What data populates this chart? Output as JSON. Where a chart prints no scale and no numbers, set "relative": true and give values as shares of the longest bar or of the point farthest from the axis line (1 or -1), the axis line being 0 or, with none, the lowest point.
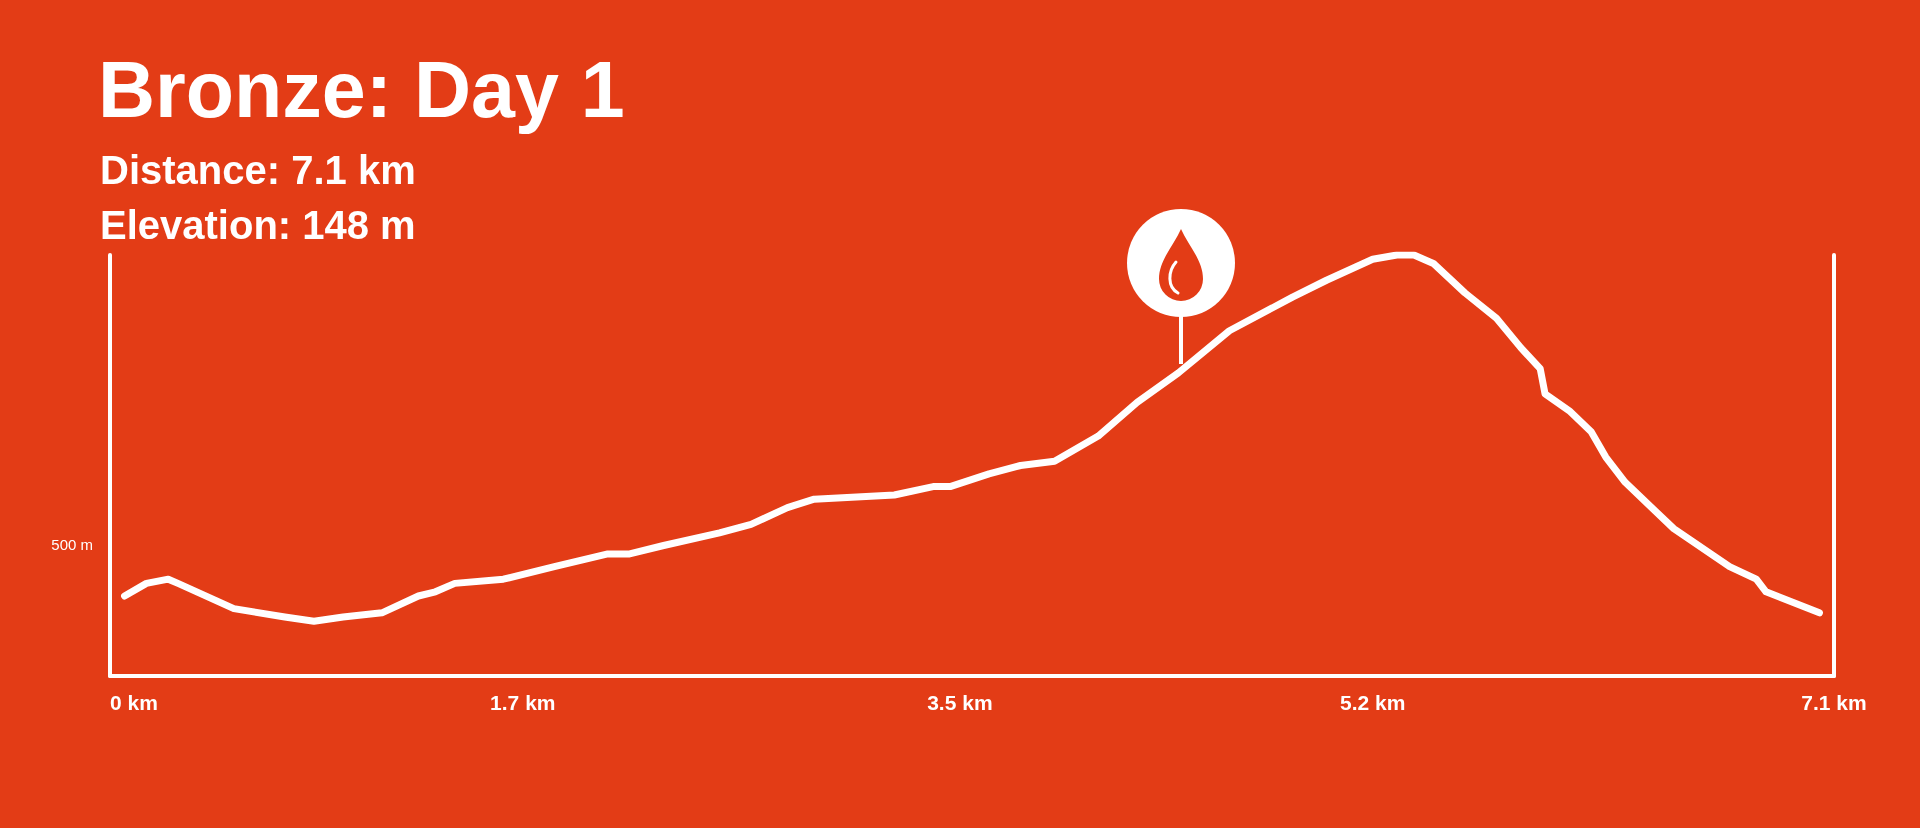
{
  "chart_data": {
    "type": "line",
    "title": "Bronze: Day 1",
    "subtitle": "Distance: 7.1 km",
    "annotations": [
      "Elevation: 148 m",
      "500 m"
    ],
    "relative": true,
    "color": "#ffffff",
    "marker": "none",
    "x": [
      0.06,
      0.15,
      0.24,
      0.28,
      0.51,
      0.72,
      0.84,
      0.96,
      1.12,
      1.27,
      1.34,
      1.42,
      1.62,
      1.83,
      2.05,
      2.14,
      2.28,
      2.51,
      2.64,
      2.79,
      2.9,
      3.23,
      3.39,
      3.46,
      3.62,
      3.75,
      3.89,
      4.07,
      4.23,
      4.4,
      4.61,
      4.87,
      5.01,
      5.2,
      5.3,
      5.37,
      5.45,
      5.58,
      5.71,
      5.81,
      5.89,
      5.91,
      6.01,
      6.1,
      6.16,
      6.24,
      6.44,
      6.67,
      6.78,
      6.82,
      7.04
    ],
    "values": [
      0.19,
      0.22,
      0.23,
      0.22,
      0.16,
      0.14,
      0.13,
      0.14,
      0.15,
      0.19,
      0.2,
      0.22,
      0.23,
      0.26,
      0.29,
      0.29,
      0.31,
      0.34,
      0.36,
      0.4,
      0.42,
      0.43,
      0.45,
      0.45,
      0.48,
      0.5,
      0.51,
      0.57,
      0.65,
      0.72,
      0.82,
      0.9,
      0.94,
      0.99,
      1,
      1,
      0.98,
      0.91,
      0.85,
      0.78,
      0.73,
      0.67,
      0.63,
      0.58,
      0.52,
      0.46,
      0.35,
      0.26,
      0.23,
      0.2,
      0.15
    ],
    "xlim": [
      0,
      7.1
    ],
    "xticks": [
      {
        "value": 0,
        "label": "0 km"
      },
      {
        "value": 1.7,
        "label": "1.7 km"
      },
      {
        "value": 3.5,
        "label": "3.5 km"
      },
      {
        "value": 5.2,
        "label": "5.2 km"
      },
      {
        "value": 7.1,
        "label": "7.1 km"
      }
    ]
  }
}
